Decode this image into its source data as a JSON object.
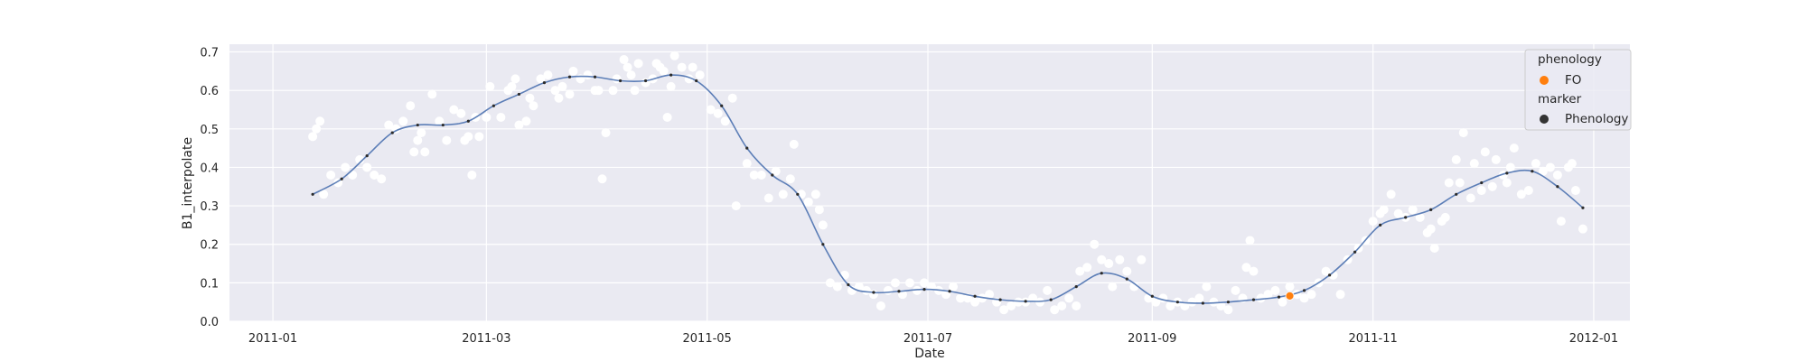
{
  "chart_data": {
    "type": "scatter",
    "xlabel": "Date",
    "ylabel": "B1_interpolate",
    "xlim": [
      "2010-12-20",
      "2012-01-11"
    ],
    "ylim": [
      0,
      0.72
    ],
    "grid": true,
    "x_ticks": [
      "2011-01",
      "2011-03",
      "2011-05",
      "2011-07",
      "2011-09",
      "2011-11",
      "2012-01"
    ],
    "y_ticks": [
      "0.0",
      "0.1",
      "0.2",
      "0.3",
      "0.4",
      "0.5",
      "0.6",
      "0.7"
    ],
    "legend": {
      "placement": "top-right",
      "groups": [
        {
          "title": "phenology",
          "entries": [
            {
              "label": "FO",
              "color": "#ff7f0e"
            }
          ]
        },
        {
          "title": "marker",
          "entries": [
            {
              "label": "Phenology",
              "color": "#333333"
            }
          ]
        }
      ]
    },
    "colors": {
      "background": "#eaeaf2",
      "grid": "#ffffff",
      "raw_points": "#ffffff",
      "smooth_line": "#4c72b0",
      "smooth_points": "#2b2b2b",
      "phenology": "#ff7f0e"
    },
    "raw_points": [
      [
        "2011-01-12",
        0.48
      ],
      [
        "2011-01-13",
        0.5
      ],
      [
        "2011-01-14",
        0.52
      ],
      [
        "2011-01-15",
        0.33
      ],
      [
        "2011-01-17",
        0.38
      ],
      [
        "2011-01-19",
        0.36
      ],
      [
        "2011-01-21",
        0.4
      ],
      [
        "2011-01-23",
        0.38
      ],
      [
        "2011-01-25",
        0.42
      ],
      [
        "2011-01-27",
        0.4
      ],
      [
        "2011-01-29",
        0.38
      ],
      [
        "2011-01-31",
        0.37
      ],
      [
        "2011-02-02",
        0.51
      ],
      [
        "2011-02-04",
        0.5
      ],
      [
        "2011-02-06",
        0.52
      ],
      [
        "2011-02-08",
        0.56
      ],
      [
        "2011-02-09",
        0.44
      ],
      [
        "2011-02-10",
        0.47
      ],
      [
        "2011-02-11",
        0.49
      ],
      [
        "2011-02-12",
        0.44
      ],
      [
        "2011-02-14",
        0.59
      ],
      [
        "2011-02-16",
        0.52
      ],
      [
        "2011-02-18",
        0.47
      ],
      [
        "2011-02-20",
        0.55
      ],
      [
        "2011-02-22",
        0.54
      ],
      [
        "2011-02-23",
        0.47
      ],
      [
        "2011-02-24",
        0.48
      ],
      [
        "2011-02-25",
        0.38
      ],
      [
        "2011-02-26",
        0.53
      ],
      [
        "2011-02-27",
        0.48
      ],
      [
        "2011-03-01",
        0.53
      ],
      [
        "2011-03-02",
        0.61
      ],
      [
        "2011-03-05",
        0.53
      ],
      [
        "2011-03-07",
        0.6
      ],
      [
        "2011-03-08",
        0.61
      ],
      [
        "2011-03-09",
        0.63
      ],
      [
        "2011-03-10",
        0.51
      ],
      [
        "2011-03-12",
        0.52
      ],
      [
        "2011-03-13",
        0.58
      ],
      [
        "2011-03-14",
        0.56
      ],
      [
        "2011-03-16",
        0.63
      ],
      [
        "2011-03-18",
        0.64
      ],
      [
        "2011-03-20",
        0.6
      ],
      [
        "2011-03-21",
        0.58
      ],
      [
        "2011-03-22",
        0.61
      ],
      [
        "2011-03-24",
        0.59
      ],
      [
        "2011-03-25",
        0.65
      ],
      [
        "2011-03-27",
        0.63
      ],
      [
        "2011-03-29",
        0.64
      ],
      [
        "2011-03-31",
        0.6
      ],
      [
        "2011-04-01",
        0.6
      ],
      [
        "2011-04-02",
        0.37
      ],
      [
        "2011-04-03",
        0.49
      ],
      [
        "2011-04-05",
        0.6
      ],
      [
        "2011-04-06",
        0.63
      ],
      [
        "2011-04-08",
        0.68
      ],
      [
        "2011-04-09",
        0.66
      ],
      [
        "2011-04-10",
        0.64
      ],
      [
        "2011-04-11",
        0.6
      ],
      [
        "2011-04-12",
        0.67
      ],
      [
        "2011-04-14",
        0.62
      ],
      [
        "2011-04-16",
        0.63
      ],
      [
        "2011-04-17",
        0.67
      ],
      [
        "2011-04-18",
        0.66
      ],
      [
        "2011-04-19",
        0.65
      ],
      [
        "2011-04-20",
        0.53
      ],
      [
        "2011-04-21",
        0.61
      ],
      [
        "2011-04-22",
        0.69
      ],
      [
        "2011-04-24",
        0.66
      ],
      [
        "2011-04-26",
        0.63
      ],
      [
        "2011-04-27",
        0.66
      ],
      [
        "2011-04-29",
        0.64
      ],
      [
        "2011-05-02",
        0.55
      ],
      [
        "2011-05-04",
        0.54
      ],
      [
        "2011-05-06",
        0.52
      ],
      [
        "2011-05-08",
        0.58
      ],
      [
        "2011-05-09",
        0.3
      ],
      [
        "2011-05-12",
        0.41
      ],
      [
        "2011-05-14",
        0.38
      ],
      [
        "2011-05-16",
        0.38
      ],
      [
        "2011-05-18",
        0.32
      ],
      [
        "2011-05-20",
        0.39
      ],
      [
        "2011-05-22",
        0.33
      ],
      [
        "2011-05-24",
        0.37
      ],
      [
        "2011-05-25",
        0.46
      ],
      [
        "2011-05-27",
        0.33
      ],
      [
        "2011-05-29",
        0.31
      ],
      [
        "2011-05-31",
        0.33
      ],
      [
        "2011-06-01",
        0.29
      ],
      [
        "2011-06-02",
        0.25
      ],
      [
        "2011-06-04",
        0.1
      ],
      [
        "2011-06-06",
        0.09
      ],
      [
        "2011-06-08",
        0.12
      ],
      [
        "2011-06-10",
        0.08
      ],
      [
        "2011-06-12",
        0.09
      ],
      [
        "2011-06-14",
        0.08
      ],
      [
        "2011-06-16",
        0.07
      ],
      [
        "2011-06-18",
        0.04
      ],
      [
        "2011-06-20",
        0.08
      ],
      [
        "2011-06-22",
        0.1
      ],
      [
        "2011-06-24",
        0.07
      ],
      [
        "2011-06-26",
        0.1
      ],
      [
        "2011-06-28",
        0.08
      ],
      [
        "2011-06-30",
        0.1
      ],
      [
        "2011-07-02",
        0.09
      ],
      [
        "2011-07-04",
        0.08
      ],
      [
        "2011-07-06",
        0.07
      ],
      [
        "2011-07-08",
        0.09
      ],
      [
        "2011-07-10",
        0.06
      ],
      [
        "2011-07-12",
        0.06
      ],
      [
        "2011-07-14",
        0.05
      ],
      [
        "2011-07-16",
        0.06
      ],
      [
        "2011-07-18",
        0.07
      ],
      [
        "2011-07-20",
        0.05
      ],
      [
        "2011-07-22",
        0.03
      ],
      [
        "2011-07-24",
        0.04
      ],
      [
        "2011-07-26",
        0.05
      ],
      [
        "2011-07-28",
        0.05
      ],
      [
        "2011-07-30",
        0.06
      ],
      [
        "2011-08-01",
        0.05
      ],
      [
        "2011-08-03",
        0.08
      ],
      [
        "2011-08-05",
        0.03
      ],
      [
        "2011-08-07",
        0.04
      ],
      [
        "2011-08-09",
        0.06
      ],
      [
        "2011-08-11",
        0.04
      ],
      [
        "2011-08-12",
        0.13
      ],
      [
        "2011-08-14",
        0.14
      ],
      [
        "2011-08-16",
        0.2
      ],
      [
        "2011-08-18",
        0.16
      ],
      [
        "2011-08-20",
        0.15
      ],
      [
        "2011-08-21",
        0.09
      ],
      [
        "2011-08-23",
        0.16
      ],
      [
        "2011-08-25",
        0.13
      ],
      [
        "2011-08-27",
        0.09
      ],
      [
        "2011-08-29",
        0.16
      ],
      [
        "2011-08-31",
        0.06
      ],
      [
        "2011-09-02",
        0.05
      ],
      [
        "2011-09-04",
        0.06
      ],
      [
        "2011-09-06",
        0.04
      ],
      [
        "2011-09-08",
        0.05
      ],
      [
        "2011-09-10",
        0.04
      ],
      [
        "2011-09-12",
        0.05
      ],
      [
        "2011-09-14",
        0.06
      ],
      [
        "2011-09-16",
        0.09
      ],
      [
        "2011-09-18",
        0.05
      ],
      [
        "2011-09-20",
        0.04
      ],
      [
        "2011-09-22",
        0.03
      ],
      [
        "2011-09-24",
        0.08
      ],
      [
        "2011-09-26",
        0.06
      ],
      [
        "2011-09-27",
        0.14
      ],
      [
        "2011-09-28",
        0.21
      ],
      [
        "2011-09-29",
        0.13
      ],
      [
        "2011-10-01",
        0.06
      ],
      [
        "2011-10-03",
        0.07
      ],
      [
        "2011-10-05",
        0.08
      ],
      [
        "2011-10-07",
        0.05
      ],
      [
        "2011-10-09",
        0.09
      ],
      [
        "2011-10-11",
        0.07
      ],
      [
        "2011-10-13",
        0.06
      ],
      [
        "2011-10-15",
        0.07
      ],
      [
        "2011-10-17",
        0.1
      ],
      [
        "2011-10-19",
        0.13
      ],
      [
        "2011-10-21",
        0.12
      ],
      [
        "2011-10-23",
        0.07
      ],
      [
        "2011-10-25",
        0.16
      ],
      [
        "2011-10-28",
        0.19
      ],
      [
        "2011-10-30",
        0.21
      ],
      [
        "2011-11-01",
        0.26
      ],
      [
        "2011-11-03",
        0.28
      ],
      [
        "2011-11-04",
        0.29
      ],
      [
        "2011-11-06",
        0.33
      ],
      [
        "2011-11-08",
        0.28
      ],
      [
        "2011-11-10",
        0.27
      ],
      [
        "2011-11-12",
        0.29
      ],
      [
        "2011-11-14",
        0.27
      ],
      [
        "2011-11-16",
        0.23
      ],
      [
        "2011-11-17",
        0.24
      ],
      [
        "2011-11-18",
        0.19
      ],
      [
        "2011-11-20",
        0.26
      ],
      [
        "2011-11-21",
        0.27
      ],
      [
        "2011-11-22",
        0.36
      ],
      [
        "2011-11-24",
        0.42
      ],
      [
        "2011-11-25",
        0.36
      ],
      [
        "2011-11-26",
        0.49
      ],
      [
        "2011-11-28",
        0.32
      ],
      [
        "2011-11-29",
        0.41
      ],
      [
        "2011-12-01",
        0.34
      ],
      [
        "2011-12-02",
        0.44
      ],
      [
        "2011-12-04",
        0.35
      ],
      [
        "2011-12-05",
        0.42
      ],
      [
        "2011-12-07",
        0.38
      ],
      [
        "2011-12-08",
        0.36
      ],
      [
        "2011-12-09",
        0.4
      ],
      [
        "2011-12-10",
        0.45
      ],
      [
        "2011-12-12",
        0.33
      ],
      [
        "2011-12-14",
        0.34
      ],
      [
        "2011-12-16",
        0.41
      ],
      [
        "2011-12-18",
        0.39
      ],
      [
        "2011-12-20",
        0.4
      ],
      [
        "2011-12-22",
        0.38
      ],
      [
        "2011-12-23",
        0.26
      ],
      [
        "2011-12-25",
        0.4
      ],
      [
        "2011-12-26",
        0.41
      ],
      [
        "2011-12-27",
        0.34
      ],
      [
        "2011-12-29",
        0.24
      ]
    ],
    "smooth_curve": [
      [
        "2011-01-12",
        0.33
      ],
      [
        "2011-01-20",
        0.37
      ],
      [
        "2011-01-27",
        0.43
      ],
      [
        "2011-02-03",
        0.49
      ],
      [
        "2011-02-10",
        0.51
      ],
      [
        "2011-02-17",
        0.51
      ],
      [
        "2011-02-24",
        0.52
      ],
      [
        "2011-03-03",
        0.56
      ],
      [
        "2011-03-10",
        0.59
      ],
      [
        "2011-03-17",
        0.62
      ],
      [
        "2011-03-24",
        0.635
      ],
      [
        "2011-03-31",
        0.635
      ],
      [
        "2011-04-07",
        0.625
      ],
      [
        "2011-04-14",
        0.625
      ],
      [
        "2011-04-21",
        0.64
      ],
      [
        "2011-04-28",
        0.625
      ],
      [
        "2011-05-05",
        0.56
      ],
      [
        "2011-05-12",
        0.45
      ],
      [
        "2011-05-19",
        0.38
      ],
      [
        "2011-05-26",
        0.33
      ],
      [
        "2011-06-02",
        0.2
      ],
      [
        "2011-06-09",
        0.095
      ],
      [
        "2011-06-16",
        0.075
      ],
      [
        "2011-06-23",
        0.078
      ],
      [
        "2011-06-30",
        0.083
      ],
      [
        "2011-07-07",
        0.078
      ],
      [
        "2011-07-14",
        0.065
      ],
      [
        "2011-07-21",
        0.056
      ],
      [
        "2011-07-28",
        0.052
      ],
      [
        "2011-08-04",
        0.056
      ],
      [
        "2011-08-11",
        0.09
      ],
      [
        "2011-08-18",
        0.125
      ],
      [
        "2011-08-25",
        0.11
      ],
      [
        "2011-09-01",
        0.065
      ],
      [
        "2011-09-08",
        0.05
      ],
      [
        "2011-09-15",
        0.047
      ],
      [
        "2011-09-22",
        0.05
      ],
      [
        "2011-09-29",
        0.056
      ],
      [
        "2011-10-06",
        0.063
      ],
      [
        "2011-10-13",
        0.08
      ],
      [
        "2011-10-20",
        0.12
      ],
      [
        "2011-10-27",
        0.18
      ],
      [
        "2011-11-03",
        0.25
      ],
      [
        "2011-11-10",
        0.27
      ],
      [
        "2011-11-17",
        0.29
      ],
      [
        "2011-11-24",
        0.33
      ],
      [
        "2011-12-01",
        0.36
      ],
      [
        "2011-12-08",
        0.385
      ],
      [
        "2011-12-15",
        0.39
      ],
      [
        "2011-12-22",
        0.35
      ],
      [
        "2011-12-29",
        0.295
      ]
    ],
    "phenology_point": {
      "date": "2011-10-09",
      "value": 0.066,
      "label": "FO"
    }
  }
}
